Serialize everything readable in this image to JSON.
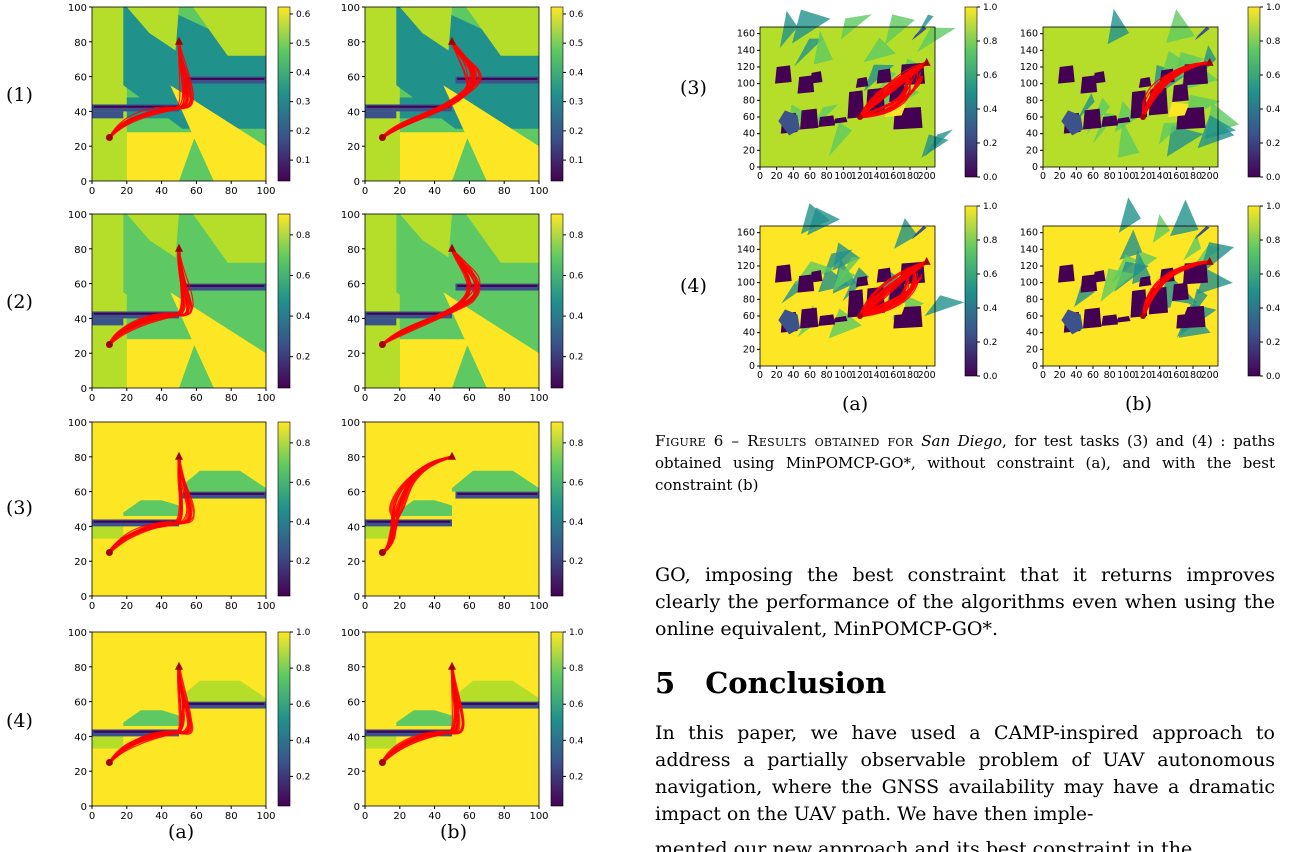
{
  "left_figure": {
    "row_labels": [
      "(1)",
      "(2)",
      "(3)",
      "(4)"
    ],
    "col_labels": [
      "(a)",
      "(b)"
    ],
    "x_ticks": [
      "0",
      "20",
      "40",
      "60",
      "80",
      "100"
    ],
    "y_ticks": [
      "0",
      "20",
      "40",
      "60",
      "80",
      "100"
    ],
    "colorbar_ticks": [
      [
        "0.1",
        "0.2",
        "0.3",
        "0.4",
        "0.5",
        "0.6"
      ],
      [
        "0.2",
        "0.4",
        "0.6",
        "0.8"
      ],
      [
        "0.2",
        "0.4",
        "0.6",
        "0.8"
      ],
      [
        "0.2",
        "0.4",
        "0.6",
        "0.8",
        "1.0"
      ]
    ]
  },
  "right_figure": {
    "row_labels": [
      "(3)",
      "(4)"
    ],
    "col_labels": [
      "(a)",
      "(b)"
    ],
    "x_ticks": [
      "0",
      "20",
      "40",
      "60",
      "80",
      "100",
      "120",
      "140",
      "160",
      "180",
      "200"
    ],
    "y_ticks": [
      "0",
      "20",
      "40",
      "60",
      "80",
      "100",
      "120",
      "140",
      "160"
    ],
    "colorbar_ticks": [
      "0.0",
      "0.2",
      "0.4",
      "0.6",
      "0.8",
      "1.0"
    ],
    "caption_prefix": "Figure 6 – Results obtained for ",
    "caption_city": "San Diego",
    "caption_rest": ", for test tasks (3) and (4) : paths obtained using MinPOMCP-GO*, without constraint (a), and with the best constraint (b)"
  },
  "paragraph_1": "GO, imposing the best constraint that it returns improves clearly the performance of the algorithms even when using the online equivalent, MinPOMCP-GO*.",
  "section": {
    "number": "5",
    "title": "Conclusion"
  },
  "paragraph_2": "In this paper, we have used a CAMP-inspired approach to address a partially observable problem of UAV autonomous navigation, where the GNSS availability may have a dramatic impact on the UAV path. We have then imple-",
  "paragraph_2_cut": "mented our new approach and its best constraint in the",
  "colors": {
    "yellow": "#fde725",
    "lime": "#b5de2b",
    "green": "#5ec962",
    "teal": "#21918c",
    "blue": "#3b528b",
    "purple": "#440154",
    "path": "#ff0000",
    "marker": "#a40000"
  }
}
